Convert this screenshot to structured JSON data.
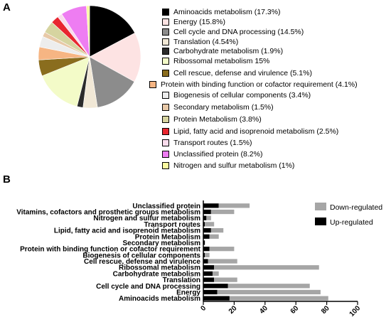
{
  "panels": {
    "a": "A",
    "b": "B"
  },
  "chart_data": [
    {
      "type": "pie",
      "slices": [
        {
          "label": "Aminoacids metabolism (17.3%)",
          "value": 17.3,
          "color": "#000000"
        },
        {
          "label": "Energy (15.8%)",
          "value": 15.8,
          "color": "#fde3e3"
        },
        {
          "label": "Cell cycle and DNA processing (14.5%)",
          "value": 14.5,
          "color": "#8c8c8c"
        },
        {
          "label": "Translation (4.54%)",
          "value": 4.54,
          "color": "#f1e8d6"
        },
        {
          "label": "Carbohydrate metabolism (1.9%)",
          "value": 1.9,
          "color": "#2b2b2b"
        },
        {
          "label": "Ribossomal metabolism 15%",
          "value": 15.0,
          "color": "#f3fbc8"
        },
        {
          "label": "Cell rescue, defense and virulence (5.1%)",
          "value": 5.1,
          "color": "#8a6d1e"
        },
        {
          "label": "Protein with binding function or cofactor requirement (4.1%)",
          "value": 4.1,
          "color": "#f6b583"
        },
        {
          "label": "Biogenesis of cellular components (3.4%)",
          "value": 3.4,
          "color": "#ededed"
        },
        {
          "label": "Secondary metabolism (1.5%)",
          "value": 1.5,
          "color": "#e8c9a8"
        },
        {
          "label": "Protein Metabolism (3.8%)",
          "value": 3.8,
          "color": "#d6d4a0"
        },
        {
          "label": "Lipid, fatty acid and isoprenoid metabolism (2.5%)",
          "value": 2.5,
          "color": "#e8262f"
        },
        {
          "label": "Transport routes (1.5%)",
          "value": 1.5,
          "color": "#f9dcec"
        },
        {
          "label": "Unclassified protein (8.2%)",
          "value": 8.2,
          "color": "#ee7df2"
        },
        {
          "label": "Nitrogen and sulfur metabolism (1%)",
          "value": 1.0,
          "color": "#fafaa0"
        }
      ]
    },
    {
      "type": "bar",
      "orientation": "horizontal",
      "stacked": true,
      "categories": [
        "Unclassified protein",
        "Vitamins, cofactors and prosthetic groups metabolism",
        "Nitrogen and sulfur metabolism",
        "Transport routes",
        "Lipid, fatty acid and isoprenoid metabolism",
        "Protein Metabolism",
        "Secondary metabolism",
        "Protein with binding function or cofactor requirement",
        "Biogenesis of cellular components",
        "Cell rescue, defense and virulence",
        "Ribossomal metabolism",
        "Carbohydrate metabolism",
        "Translation",
        "Cell cycle and DNA processing",
        "Energy",
        "Aminoacids metabolism"
      ],
      "series": [
        {
          "name": "Up-regulated",
          "color": "#000000",
          "values": [
            10,
            5,
            2,
            1,
            5,
            4,
            1,
            4,
            1,
            3,
            7,
            6,
            7,
            16,
            9,
            17
          ]
        },
        {
          "name": "Down-regulated",
          "color": "#a6a6a6",
          "values": [
            20,
            15,
            3,
            6,
            8,
            6,
            0,
            16,
            3,
            19,
            68,
            4,
            15,
            53,
            67,
            64
          ]
        }
      ],
      "xlim": [
        0,
        100
      ],
      "xticks": [
        0,
        20,
        40,
        60,
        80,
        100
      ],
      "legend_position": "top-right"
    }
  ]
}
